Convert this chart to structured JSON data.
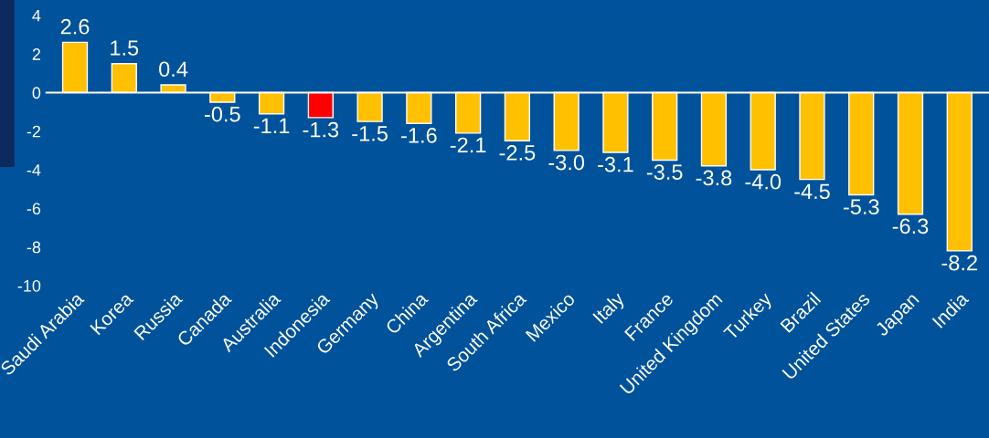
{
  "chart_data": {
    "type": "bar",
    "categories": [
      "Saudi Arabia",
      "Korea",
      "Russia",
      "Canada",
      "Australia",
      "Indonesia",
      "Germany",
      "China",
      "Argentina",
      "South Africa",
      "Mexico",
      "Italy",
      "France",
      "United Kingdom",
      "Turkey",
      "Brazil",
      "United States",
      "Japan",
      "India"
    ],
    "values": [
      2.6,
      1.5,
      0.4,
      -0.5,
      -1.1,
      -1.3,
      -1.5,
      -1.6,
      -2.1,
      -2.5,
      -3.0,
      -3.1,
      -3.5,
      -3.8,
      -4.0,
      -4.5,
      -5.3,
      -6.3,
      -8.2
    ],
    "colors": [
      "#ffc000",
      "#ffc000",
      "#ffc000",
      "#ffc000",
      "#ffc000",
      "#ff0000",
      "#ffc000",
      "#ffc000",
      "#ffc000",
      "#ffc000",
      "#ffc000",
      "#ffc000",
      "#ffc000",
      "#ffc000",
      "#ffc000",
      "#ffc000",
      "#ffc000",
      "#ffc000",
      "#ffc000"
    ],
    "value_labels": [
      "2.6",
      "1.5",
      "0.4",
      "-0.5",
      "-1.1",
      "-1.3",
      "-1.5",
      "-1.6",
      "-2.1",
      "-2.5",
      "-3.0",
      "-3.1",
      "-3.5",
      "-3.8",
      "-4.0",
      "-4.5",
      "-5.3",
      "-6.3",
      "-8.2"
    ],
    "ylim": [
      -10,
      4
    ],
    "yticks": [
      -10,
      -8,
      -6,
      -4,
      -2,
      0,
      2,
      4
    ],
    "ref_lines": [
      {
        "axis": "y",
        "value": 0,
        "color": "#ffffff"
      }
    ]
  }
}
